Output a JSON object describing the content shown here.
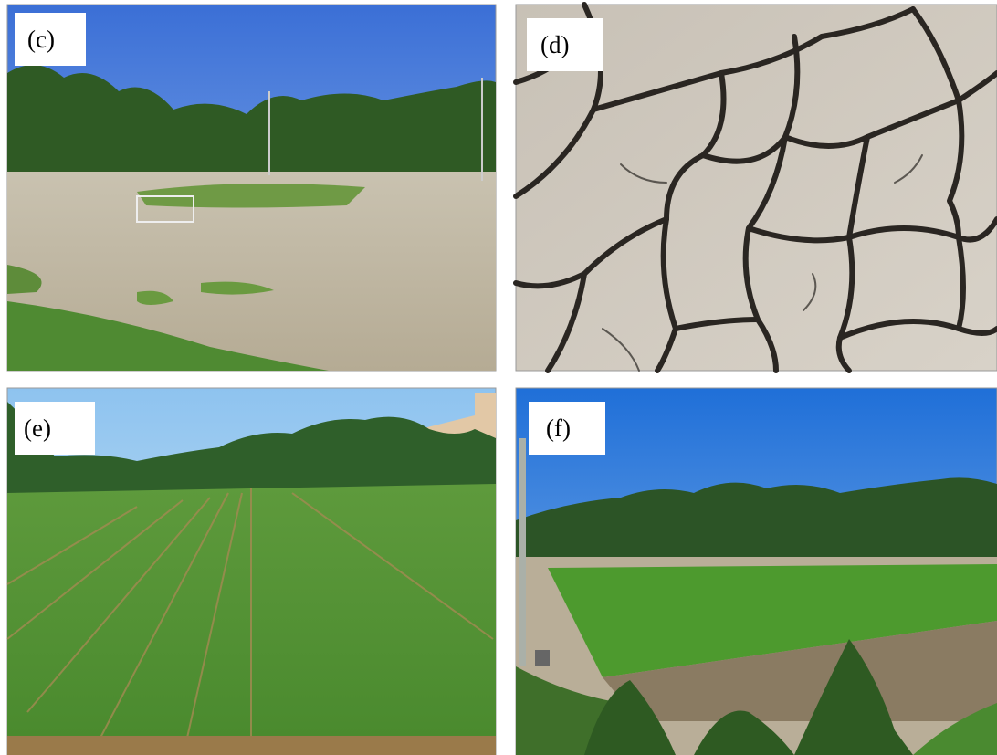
{
  "panels": [
    {
      "label": "(c)"
    },
    {
      "label": "(d)"
    },
    {
      "label": "(e)"
    },
    {
      "label": "(f)"
    }
  ]
}
